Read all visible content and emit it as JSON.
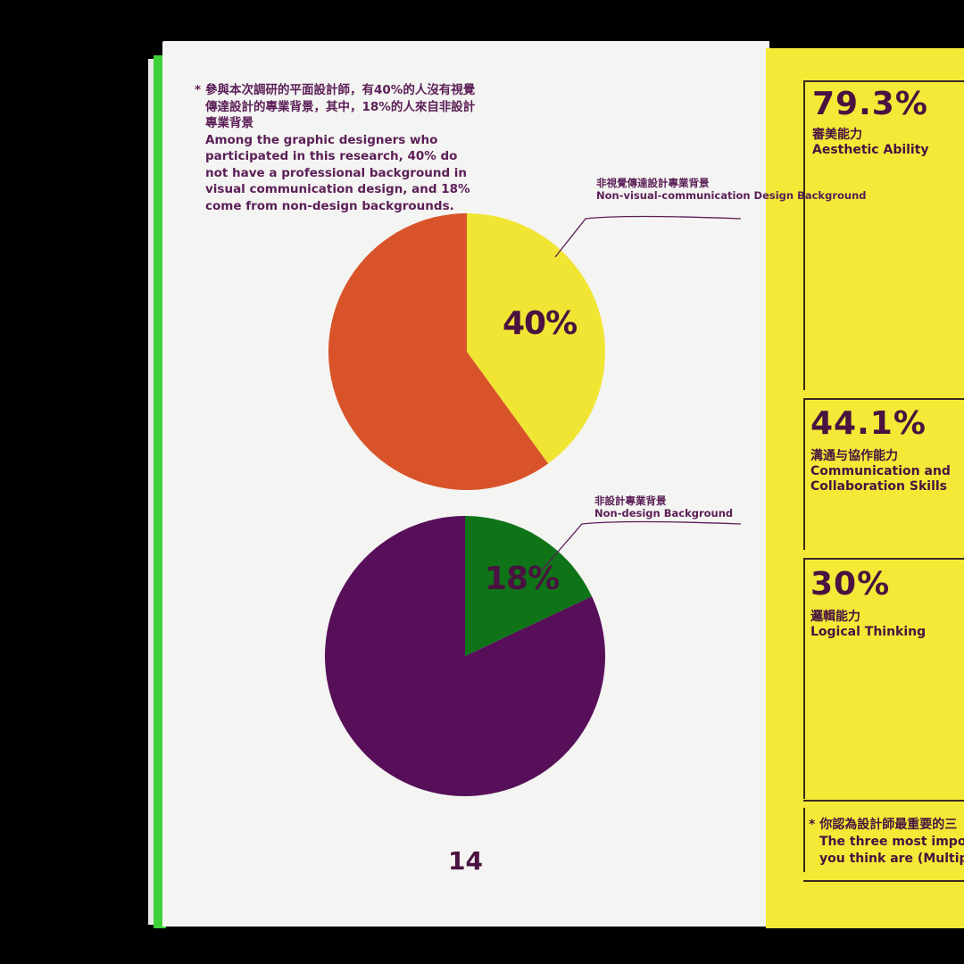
{
  "left_page": {
    "note": {
      "zh": "參與本次調研的平面設計師，有40%的人沒有視覺傳達設計的專業背景，其中，18%的人來自非設計專業背景",
      "en": "Among the graphic designers who participated in this research, 40% do not have a professional background in visual communication design, and 18% come from non-design backgrounds."
    },
    "page_number": "14"
  },
  "chart_data": [
    {
      "type": "pie",
      "slices": [
        {
          "label_zh": "非視覺傳達設計專業背景",
          "label_en": "Non-visual-communication Design Background",
          "value": 40,
          "display": "40%",
          "color": "#f1e534"
        },
        {
          "label": "",
          "value": 60,
          "color": "#d9532a"
        }
      ]
    },
    {
      "type": "pie",
      "slices": [
        {
          "label_zh": "非設計專業背景",
          "label_en": "Non-design Background",
          "value": 18,
          "display": "18%",
          "color": "#0e7417"
        },
        {
          "label": "",
          "value": 82,
          "color": "#560f58"
        }
      ]
    }
  ],
  "right_page": {
    "stats": [
      {
        "value": "79.3%",
        "zh": "審美能力",
        "en": "Aesthetic Ability"
      },
      {
        "value": "44.1%",
        "zh": "溝通与協作能力",
        "en": "Communication and Collaboration Skills"
      },
      {
        "value": "30%",
        "zh": "邏輯能力",
        "en": "Logical Thinking"
      }
    ],
    "footnote": {
      "zh": "你認為設計師最重要的三",
      "en1": "The three most import",
      "en2": "you think are (Multiple"
    }
  }
}
